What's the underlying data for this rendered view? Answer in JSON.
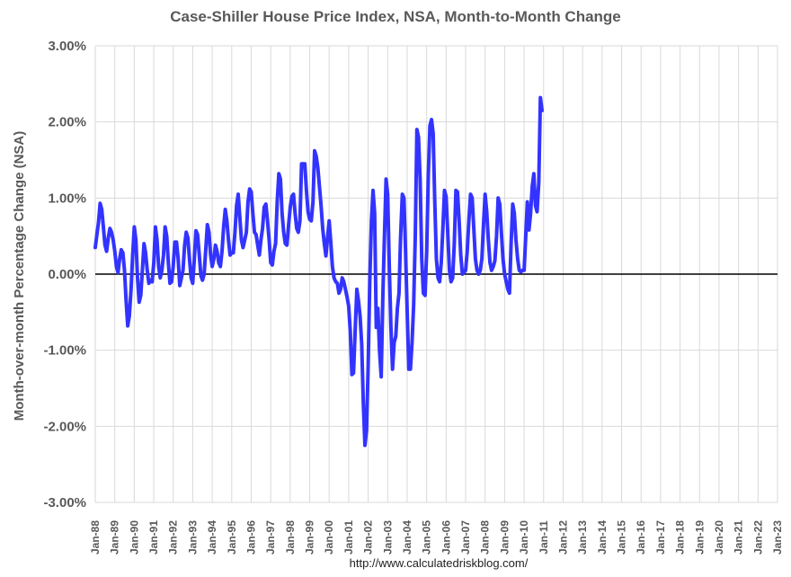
{
  "chart_data": {
    "type": "line",
    "title": "Case-Shiller House Price Index, NSA, Month-to-Month Change",
    "ylabel": "Month-over-month Percentage Change (NSA)",
    "xlabel": "",
    "source": "http://www.calculatedriskblog.com/",
    "ylim": [
      -3,
      3
    ],
    "y_ticks": [
      "3.00%",
      "2.00%",
      "1.00%",
      "0.00%",
      "-1.00%",
      "-2.00%",
      "-3.00%"
    ],
    "y_tick_values": [
      3,
      2,
      1,
      0,
      -1,
      -2,
      -3
    ],
    "x_range": [
      1988.0,
      2023.0
    ],
    "x_ticks": [
      "Jan-88",
      "Jan-89",
      "Jan-90",
      "Jan-91",
      "Jan-92",
      "Jan-93",
      "Jan-94",
      "Jan-95",
      "Jan-96",
      "Jan-97",
      "Jan-98",
      "Jan-99",
      "Jan-00",
      "Jan-01",
      "Jan-02",
      "Jan-03",
      "Jan-04",
      "Jan-05",
      "Jan-06",
      "Jan-07",
      "Jan-08",
      "Jan-09",
      "Jan-10",
      "Jan-11",
      "Jan-12",
      "Jan-13",
      "Jan-14",
      "Jan-15",
      "Jan-16",
      "Jan-17",
      "Jan-18",
      "Jan-19",
      "Jan-20",
      "Jan-21",
      "Jan-22",
      "Jan-23"
    ],
    "grid": "vertical-and-horizontal",
    "series_color": "#3333ff",
    "series": [
      {
        "name": "Month-to-Month Change",
        "start": "1988-01",
        "frequency": "monthly",
        "values": [
          0.35,
          0.52,
          0.68,
          0.93,
          0.85,
          0.62,
          0.38,
          0.3,
          0.48,
          0.6,
          0.55,
          0.45,
          0.3,
          0.1,
          0.02,
          0.2,
          0.32,
          0.28,
          0.05,
          -0.35,
          -0.68,
          -0.55,
          -0.2,
          0.25,
          0.62,
          0.45,
          -0.05,
          -0.37,
          -0.28,
          0.05,
          0.4,
          0.28,
          0.05,
          -0.12,
          -0.08,
          -0.1,
          0.15,
          0.62,
          0.45,
          0.1,
          -0.05,
          0.05,
          0.25,
          0.62,
          0.5,
          0.15,
          -0.12,
          -0.1,
          0.1,
          0.42,
          0.42,
          0.2,
          -0.15,
          -0.05,
          0.05,
          0.38,
          0.55,
          0.48,
          0.2,
          -0.05,
          -0.12,
          0.2,
          0.57,
          0.52,
          0.25,
          -0.02,
          -0.08,
          0.0,
          0.32,
          0.65,
          0.55,
          0.25,
          0.1,
          0.2,
          0.38,
          0.3,
          0.15,
          0.1,
          0.3,
          0.62,
          0.85,
          0.7,
          0.45,
          0.25,
          0.28,
          0.28,
          0.55,
          0.9,
          1.05,
          0.75,
          0.45,
          0.35,
          0.45,
          0.55,
          0.95,
          1.12,
          1.08,
          0.8,
          0.55,
          0.52,
          0.38,
          0.25,
          0.45,
          0.6,
          0.88,
          0.92,
          0.7,
          0.45,
          0.15,
          0.12,
          0.3,
          0.4,
          0.95,
          1.32,
          1.25,
          0.8,
          0.55,
          0.4,
          0.38,
          0.65,
          0.88,
          1.02,
          1.05,
          0.8,
          0.6,
          0.55,
          0.7,
          1.45,
          1.45,
          1.45,
          1.1,
          0.82,
          0.72,
          0.7,
          0.95,
          1.62,
          1.55,
          1.4,
          1.15,
          0.9,
          0.6,
          0.4,
          0.24,
          0.48,
          0.7,
          0.42,
          0.1,
          -0.05,
          -0.1,
          -0.12,
          -0.25,
          -0.2,
          -0.05,
          -0.1,
          -0.2,
          -0.3,
          -0.42,
          -0.75,
          -1.32,
          -1.3,
          -0.75,
          -0.2,
          -0.35,
          -0.55,
          -0.92,
          -1.7,
          -2.25,
          -2.05,
          -1.2,
          -0.1,
          0.7,
          1.1,
          0.8,
          -0.7,
          -0.45,
          -1.0,
          -1.35,
          -0.3,
          0.5,
          1.25,
          1.05,
          0.1,
          -0.7,
          -1.25,
          -0.9,
          -0.82,
          -0.45,
          -0.25,
          0.5,
          1.05,
          1.0,
          0.3,
          -0.5,
          -1.25,
          -1.25,
          -0.9,
          -0.4,
          0.5,
          1.9,
          1.8,
          1.25,
          0.2,
          -0.25,
          -0.28,
          0.3,
          1.3,
          1.95,
          2.03,
          1.85,
          0.95,
          0.2,
          -0.05,
          -0.1,
          0.15,
          0.6,
          1.1,
          1.02,
          0.55,
          0.05,
          -0.1,
          -0.05,
          0.4,
          1.1,
          1.08,
          0.7,
          0.25,
          0.0,
          0.02,
          0.05,
          0.3,
          0.7,
          1.05,
          1.0,
          0.6,
          0.2,
          0.05,
          0.0,
          0.05,
          0.2,
          0.65,
          1.05,
          0.82,
          0.45,
          0.15,
          0.05,
          0.1,
          0.18,
          0.5,
          1.0,
          0.92,
          0.55,
          0.2,
          0.0,
          -0.1,
          -0.2,
          -0.25,
          0.4,
          0.92,
          0.8,
          0.45,
          0.2,
          0.05,
          0.03,
          0.05,
          0.05,
          0.5,
          0.95,
          0.58,
          0.8,
          1.15,
          1.32,
          0.9,
          0.82,
          1.2,
          2.32,
          2.15
        ]
      }
    ]
  }
}
